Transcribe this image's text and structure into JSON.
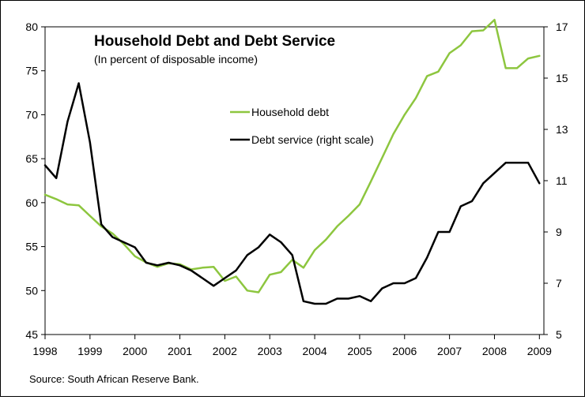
{
  "chart_data": {
    "type": "line",
    "title": "Household Debt and Debt Service",
    "subtitle": "(In percent of disposable income)",
    "source": "Source: South African Reserve Bank.",
    "x_ticks": [
      "1998",
      "1999",
      "2000",
      "2001",
      "2002",
      "2003",
      "2004",
      "2005",
      "2006",
      "2007",
      "2008",
      "2009"
    ],
    "xlim": [
      1998,
      2009.1
    ],
    "y_left": {
      "lim": [
        45,
        80
      ],
      "ticks": [
        "45",
        "50",
        "55",
        "60",
        "65",
        "70",
        "75",
        "80"
      ]
    },
    "y_right": {
      "lim": [
        5,
        17
      ],
      "ticks": [
        "5",
        "7",
        "9",
        "11",
        "13",
        "15",
        "17"
      ]
    },
    "legend": {
      "placement": "center"
    },
    "series": [
      {
        "name": "Household debt",
        "axis": "left",
        "color": "#8dc63f",
        "x": [
          1998.0,
          1998.25,
          1998.5,
          1998.75,
          1999.0,
          1999.25,
          1999.5,
          1999.75,
          2000.0,
          2000.25,
          2000.5,
          2000.75,
          2001.0,
          2001.25,
          2001.5,
          2001.75,
          2002.0,
          2002.25,
          2002.5,
          2002.75,
          2003.0,
          2003.25,
          2003.5,
          2003.75,
          2004.0,
          2004.25,
          2004.5,
          2004.75,
          2005.0,
          2005.25,
          2005.5,
          2005.75,
          2006.0,
          2006.25,
          2006.5,
          2006.75,
          2007.0,
          2007.25,
          2007.5,
          2007.75,
          2008.0,
          2008.25,
          2008.5,
          2008.75,
          2009.0
        ],
        "values": [
          60.9,
          60.4,
          59.8,
          59.7,
          58.5,
          57.3,
          56.5,
          55.3,
          53.9,
          53.2,
          52.7,
          53.1,
          53.0,
          52.4,
          52.6,
          52.7,
          51.1,
          51.6,
          50.0,
          49.8,
          51.8,
          52.1,
          53.5,
          52.6,
          54.6,
          55.8,
          57.3,
          58.5,
          59.8,
          62.4,
          65.1,
          67.8,
          70.0,
          71.9,
          74.4,
          74.9,
          77.0,
          77.9,
          79.5,
          79.6,
          80.8,
          75.3,
          75.3,
          76.4,
          76.7
        ]
      },
      {
        "name": "Debt service (right scale)",
        "axis": "right",
        "color": "#000000",
        "x": [
          1998.0,
          1998.25,
          1998.5,
          1998.75,
          1999.0,
          1999.25,
          1999.5,
          1999.75,
          2000.0,
          2000.25,
          2000.5,
          2000.75,
          2001.0,
          2001.25,
          2001.5,
          2001.75,
          2002.0,
          2002.25,
          2002.5,
          2002.75,
          2003.0,
          2003.25,
          2003.5,
          2003.75,
          2004.0,
          2004.25,
          2004.5,
          2004.75,
          2005.0,
          2005.25,
          2005.5,
          2005.75,
          2006.0,
          2006.25,
          2006.5,
          2006.75,
          2007.0,
          2007.25,
          2007.5,
          2007.75,
          2008.0,
          2008.25,
          2008.5,
          2008.75,
          2009.0
        ],
        "values": [
          11.6,
          11.1,
          13.3,
          14.8,
          12.5,
          9.3,
          8.8,
          8.6,
          8.4,
          7.8,
          7.7,
          7.8,
          7.7,
          7.5,
          7.2,
          6.9,
          7.2,
          7.5,
          8.1,
          8.4,
          8.9,
          8.6,
          8.1,
          6.3,
          6.2,
          6.2,
          6.4,
          6.4,
          6.5,
          6.3,
          6.8,
          7.0,
          7.0,
          7.2,
          8.0,
          9.0,
          9.0,
          10.0,
          10.2,
          10.9,
          11.3,
          11.7,
          11.7,
          11.7,
          10.9
        ]
      }
    ]
  }
}
